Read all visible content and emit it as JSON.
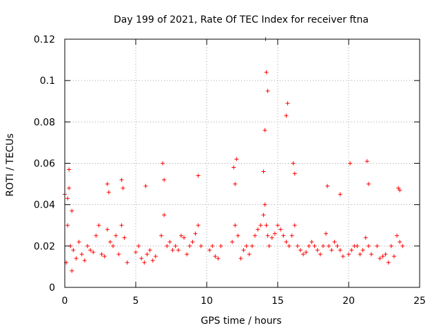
{
  "chart_data": {
    "type": "scatter",
    "title": "Day 199 of 2021, Rate Of TEC Index for receiver ftna",
    "xlabel": "GPS time / hours",
    "ylabel": "ROTI / TECUs",
    "xlim": [
      0,
      25
    ],
    "ylim": [
      0,
      0.12
    ],
    "xticks": [
      0,
      5,
      10,
      15,
      20,
      25
    ],
    "xtick_labels": [
      "0",
      "5",
      "10",
      "15",
      "20",
      "25"
    ],
    "yticks": [
      0,
      0.02,
      0.04,
      0.06,
      0.08,
      0.1,
      0.12
    ],
    "ytick_labels": [
      "0",
      "0.02",
      "0.04",
      "0.06",
      "0.08",
      "0.1",
      "0.12"
    ],
    "grid": true,
    "marker": "+",
    "color": "#ff0000",
    "series": [
      {
        "name": "ROTI",
        "x": [
          0.0,
          0.1,
          0.2,
          0.3,
          0.4,
          0.5,
          0.6,
          0.8,
          1.0,
          1.2,
          1.4,
          1.6,
          1.8,
          2.0,
          2.2,
          2.4,
          2.6,
          2.8,
          3.0,
          3.2,
          3.4,
          3.6,
          3.8,
          4.0,
          4.2,
          4.4,
          5.0,
          5.2,
          5.4,
          5.6,
          5.8,
          6.0,
          6.2,
          6.4,
          6.8,
          7.0,
          7.2,
          7.4,
          7.6,
          7.8,
          8.0,
          8.2,
          8.4,
          8.6,
          8.8,
          9.0,
          9.2,
          9.4,
          9.6,
          10.2,
          10.4,
          10.6,
          10.8,
          11.0,
          11.8,
          12.0,
          12.2,
          12.4,
          12.6,
          12.8,
          13.0,
          13.2,
          13.4,
          13.6,
          13.8,
          14.0,
          14.1,
          14.2,
          14.3,
          14.4,
          14.6,
          14.8,
          15.0,
          15.2,
          15.4,
          15.6,
          15.8,
          16.0,
          16.2,
          16.4,
          16.6,
          16.8,
          17.0,
          17.2,
          17.4,
          17.6,
          17.8,
          18.0,
          18.2,
          18.4,
          18.6,
          18.8,
          19.0,
          19.2,
          19.4,
          19.6,
          20.0,
          20.2,
          20.4,
          20.6,
          20.8,
          21.0,
          21.2,
          21.4,
          21.6,
          22.0,
          22.2,
          22.4,
          22.6,
          22.8,
          23.0,
          23.2,
          23.4,
          23.6,
          23.8,
          0.2,
          0.3,
          0.5,
          6.9,
          7.0,
          9.4,
          11.9,
          12.0,
          14.0,
          14.1,
          14.15,
          14.2,
          14.3,
          15.6,
          15.7,
          16.1,
          16.2,
          20.1,
          21.3,
          21.4,
          23.5,
          23.6,
          3.0,
          3.1,
          4.0,
          4.1,
          5.7,
          12.1,
          18.5,
          19.4
        ],
        "y": [
          0.045,
          0.012,
          0.03,
          0.057,
          0.02,
          0.008,
          0.018,
          0.014,
          0.022,
          0.016,
          0.013,
          0.02,
          0.018,
          0.017,
          0.025,
          0.03,
          0.016,
          0.015,
          0.028,
          0.022,
          0.02,
          0.025,
          0.016,
          0.03,
          0.024,
          0.012,
          0.017,
          0.02,
          0.014,
          0.012,
          0.016,
          0.018,
          0.013,
          0.015,
          0.025,
          0.035,
          0.02,
          0.022,
          0.018,
          0.02,
          0.018,
          0.025,
          0.024,
          0.016,
          0.02,
          0.022,
          0.026,
          0.03,
          0.02,
          0.018,
          0.02,
          0.015,
          0.014,
          0.02,
          0.022,
          0.03,
          0.025,
          0.014,
          0.018,
          0.02,
          0.016,
          0.02,
          0.025,
          0.028,
          0.03,
          0.035,
          0.04,
          0.03,
          0.025,
          0.02,
          0.024,
          0.026,
          0.03,
          0.028,
          0.025,
          0.022,
          0.02,
          0.025,
          0.03,
          0.02,
          0.018,
          0.016,
          0.017,
          0.02,
          0.022,
          0.02,
          0.018,
          0.016,
          0.02,
          0.026,
          0.02,
          0.018,
          0.022,
          0.02,
          0.018,
          0.015,
          0.016,
          0.018,
          0.02,
          0.02,
          0.016,
          0.018,
          0.024,
          0.02,
          0.016,
          0.02,
          0.014,
          0.015,
          0.016,
          0.012,
          0.02,
          0.015,
          0.025,
          0.022,
          0.02,
          0.043,
          0.048,
          0.037,
          0.06,
          0.052,
          0.054,
          0.058,
          0.05,
          0.056,
          0.076,
          0.12,
          0.104,
          0.095,
          0.083,
          0.089,
          0.06,
          0.055,
          0.06,
          0.061,
          0.05,
          0.048,
          0.047,
          0.05,
          0.046,
          0.052,
          0.048,
          0.049,
          0.062,
          0.049,
          0.045
        ]
      }
    ]
  }
}
